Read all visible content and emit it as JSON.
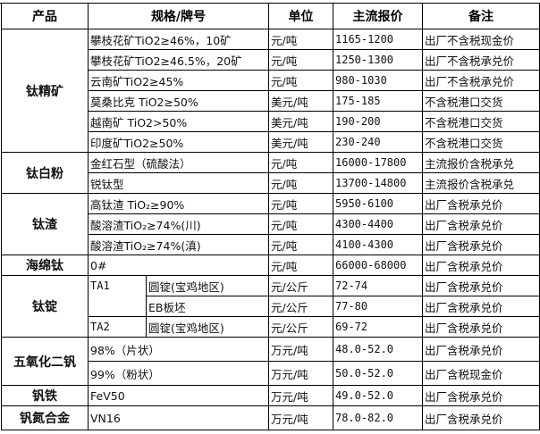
{
  "headers": {
    "product": "产品",
    "spec": "规格/牌号",
    "unit": "单位",
    "price": "主流报价",
    "note": "备注"
  },
  "groups": {
    "ti_conc": {
      "name": "钛精矿",
      "rows": [
        {
          "spec": "攀枝花矿TiO2≥46%，10矿",
          "unit": "元/吨",
          "price": "1165-1200",
          "note": "出厂不含税现金价"
        },
        {
          "spec": "攀枝花矿TiO2≥46.5%，20矿",
          "unit": "元/吨",
          "price": "1250-1300",
          "note": "出厂不含税承兑价"
        },
        {
          "spec": "云南矿TiO2≥45%",
          "unit": "元/吨",
          "price": "980-1030",
          "note": "出厂不含税承兑价"
        },
        {
          "spec": "莫桑比克 TiO2≥50%",
          "unit": "美元/吨",
          "price": "175-185",
          "note": "不含税港口交货"
        },
        {
          "spec": "越南矿 TiO2>50%",
          "unit": "美元/吨",
          "price": "190-200",
          "note": "不含税港口交货"
        },
        {
          "spec": "印度矿TiO2≥50%",
          "unit": "美元/吨",
          "price": "230-240",
          "note": "不含税港口交货"
        }
      ]
    },
    "tio2": {
      "name": "钛白粉",
      "rows": [
        {
          "spec": "金红石型（硫酸法）",
          "unit": "元/吨",
          "price": "16000-17800",
          "note": "主流报价含税承兑"
        },
        {
          "spec": "锐钛型",
          "unit": "元/吨",
          "price": "13700-14800",
          "note": "主流报价含税承兑"
        }
      ]
    },
    "slag": {
      "name": "钛渣",
      "rows": [
        {
          "spec": "高钛渣 TiO₂≥90%",
          "unit": "元/吨",
          "price": "5950-6100",
          "note": "出厂含税承兑价"
        },
        {
          "spec": "酸溶渣TiO₂≥74%(川)",
          "unit": "元/吨",
          "price": "4300-4400",
          "note": "出厂含税承兑价"
        },
        {
          "spec": "酸溶渣TiO₂≥74%(滇)",
          "unit": "元/吨",
          "price": "4100-4300",
          "note": "出厂含税承兑价"
        }
      ]
    },
    "sponge": {
      "name": "海绵钛",
      "rows": [
        {
          "spec": "0#",
          "unit": "元/吨",
          "price": "66000-68000",
          "note": "出厂含税承兑价"
        }
      ]
    },
    "ingot": {
      "name": "钛锭",
      "ta1": "TA1",
      "ta2": "TA2",
      "rows": [
        {
          "spec": "圆锭(宝鸡地区)",
          "unit": "元/公斤",
          "price": "72-74",
          "note": "出厂含税承兑价"
        },
        {
          "spec": "EB板坯",
          "unit": "元/公斤",
          "price": "77-80",
          "note": "出厂含税承兑价"
        },
        {
          "spec": "圆锭(宝鸡地区)",
          "unit": "元/公斤",
          "price": "69-72",
          "note": "出厂含税承兑价"
        }
      ]
    },
    "v2o5": {
      "name": "五氧化二钒",
      "rows": [
        {
          "spec": "98%（片状）",
          "unit": "万元/吨",
          "price": "48.0-52.0",
          "note": "出厂含税承兑价"
        },
        {
          "spec": "99%（粉状）",
          "unit": "万元/吨",
          "price": "50.0-52.0",
          "note": "出厂含税现金价"
        }
      ]
    },
    "fev": {
      "name": "钒铁",
      "rows": [
        {
          "spec": "FeV50",
          "unit": "万元/吨",
          "price": "49.0-52.0",
          "note": "出厂含税承兑价"
        }
      ]
    },
    "vn": {
      "name": "钒氮合金",
      "rows": [
        {
          "spec": "VN16",
          "unit": "万元/吨",
          "price": "78.0-82.0",
          "note": "出厂含税承兑价"
        }
      ]
    }
  }
}
